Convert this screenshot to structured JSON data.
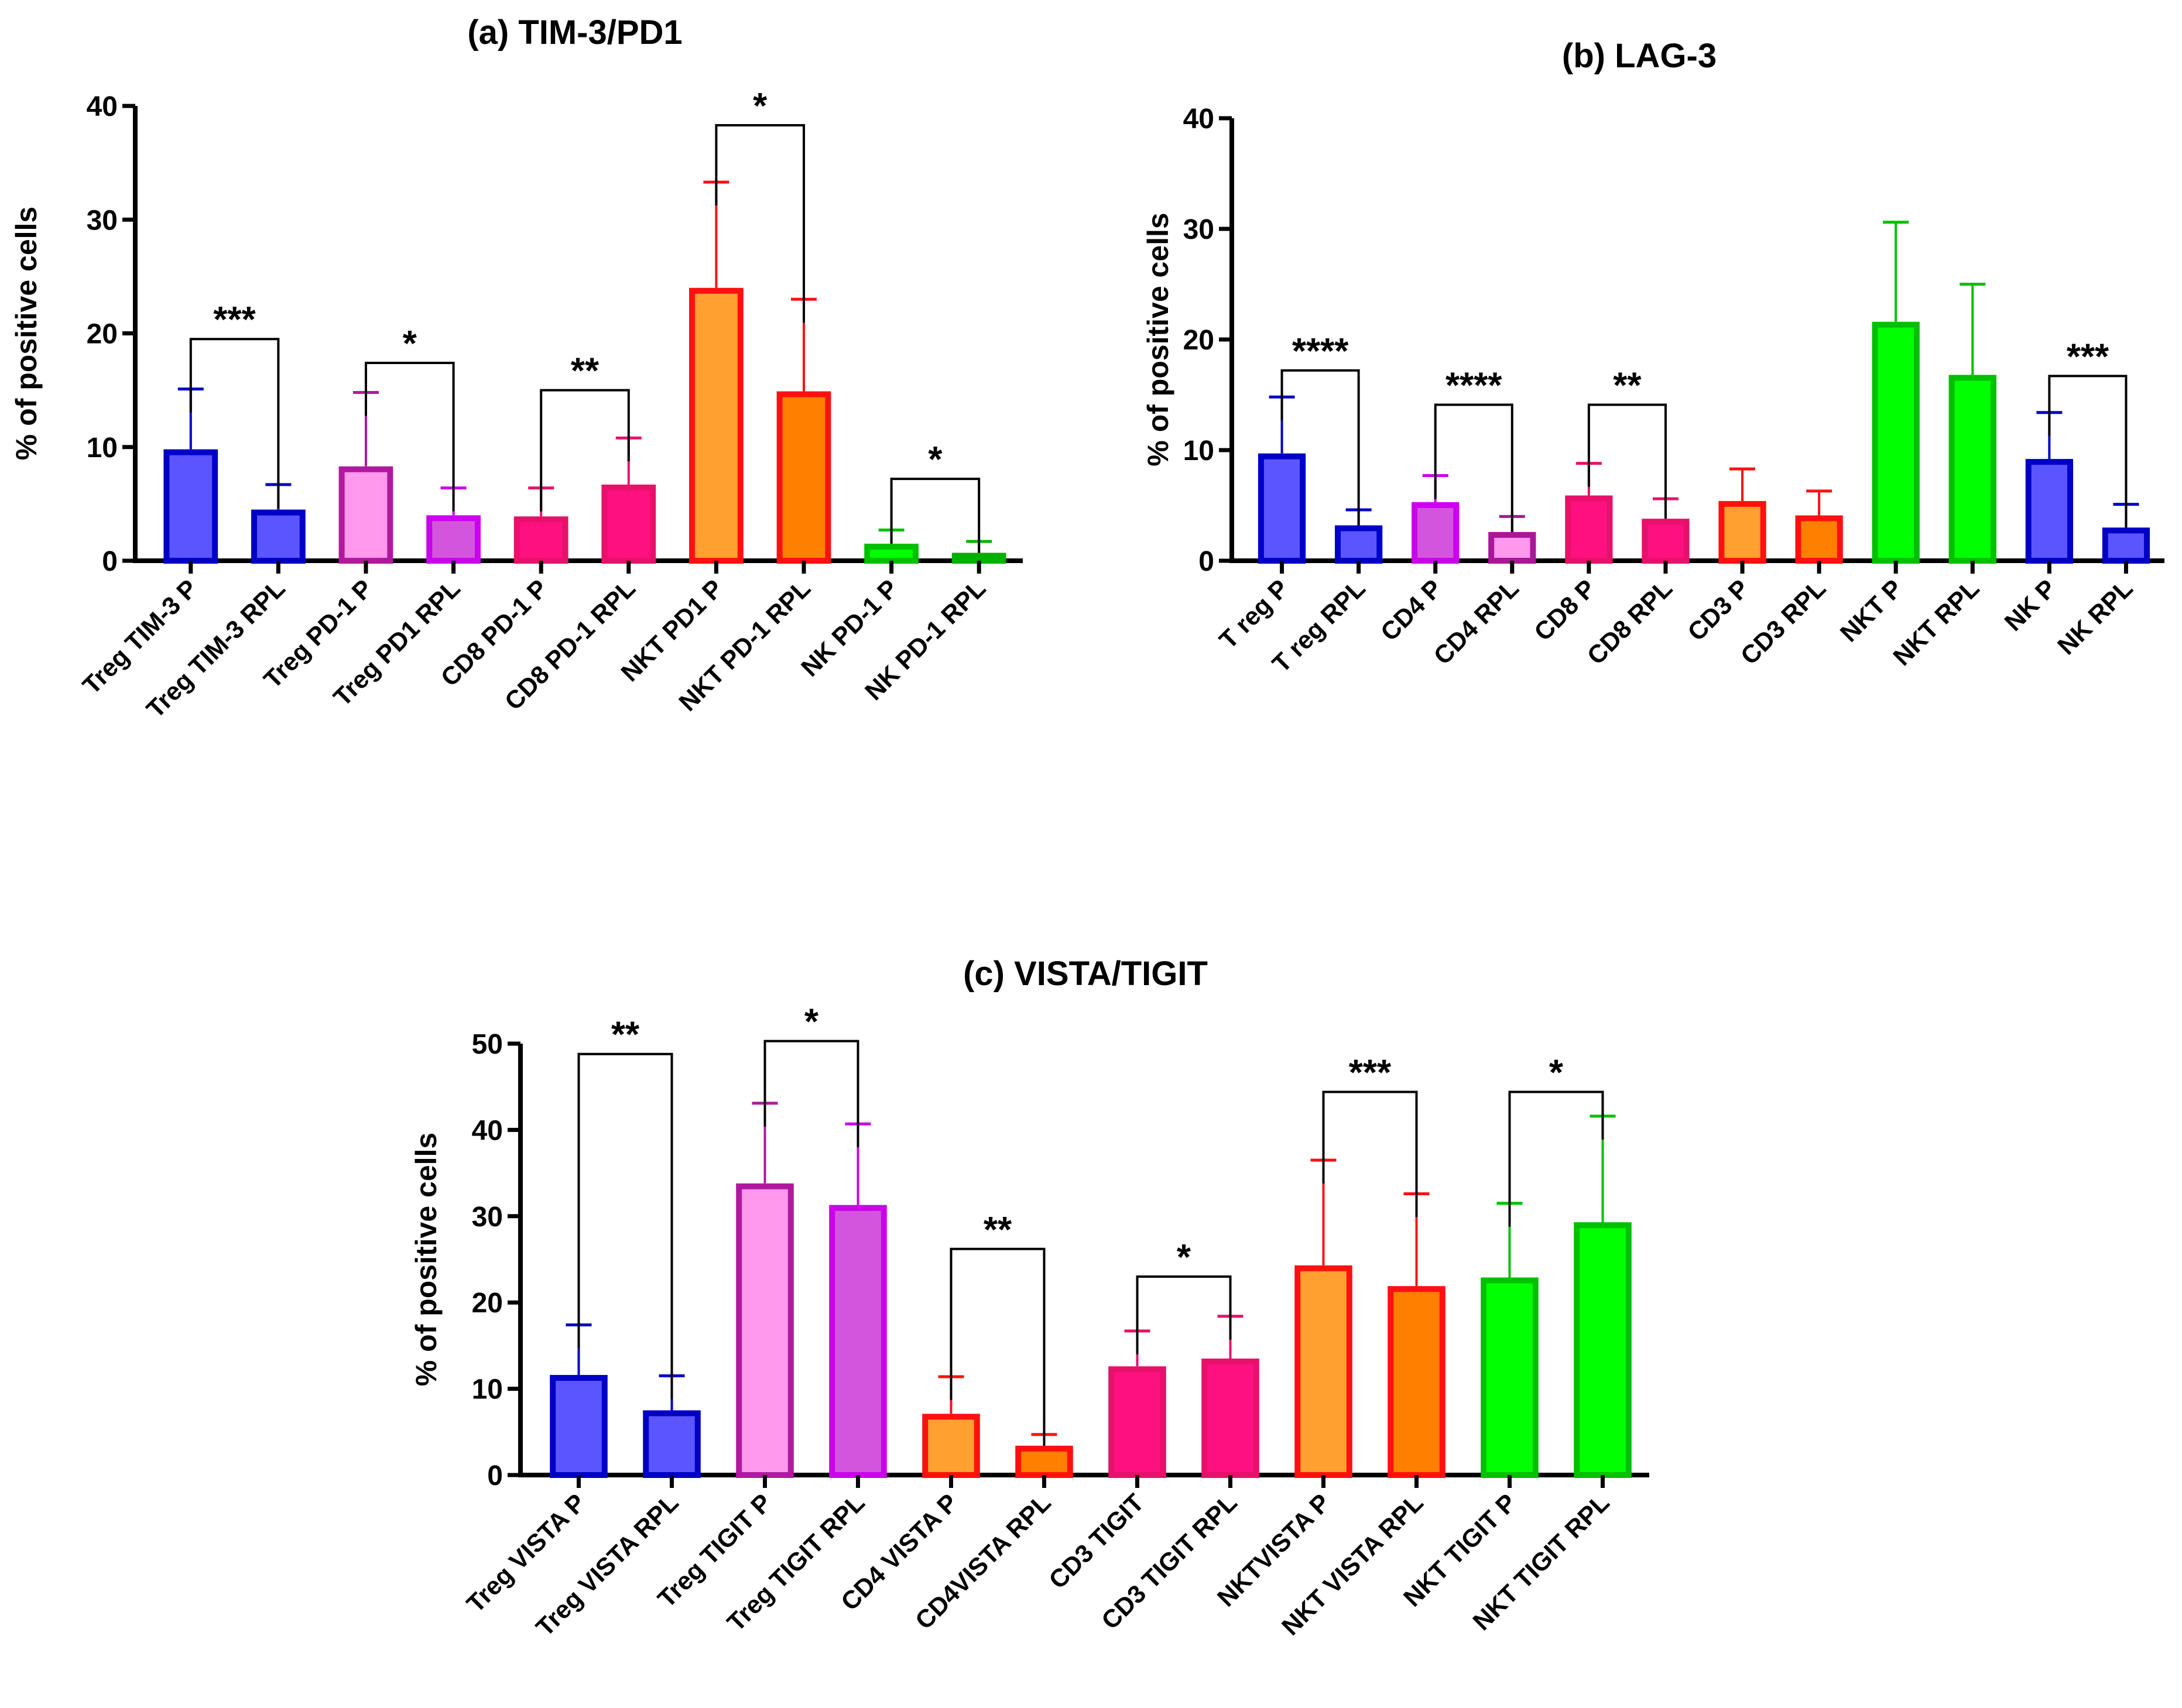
{
  "colors": {
    "blue": {
      "fill": "#5a55ff",
      "stroke": "#0000c8"
    },
    "pink": {
      "fill": "#ff99ee",
      "stroke": "#b0199e"
    },
    "violet": {
      "fill": "#d455dd",
      "stroke": "#cc00ee"
    },
    "pink_purple": {
      "fill": "#ff99ee",
      "stroke": "#a8179a"
    },
    "hotpink": {
      "fill": "#ff1080",
      "stroke": "#e8106a"
    },
    "orange": {
      "fill": "#ffa030",
      "stroke": "#ff1010"
    },
    "darkorange": {
      "fill": "#ff8000",
      "stroke": "#ff1010"
    },
    "green": {
      "fill": "#00ff00",
      "stroke": "#00c000"
    },
    "green2": {
      "fill": "#00cc00",
      "stroke": "#00b000"
    }
  },
  "chart_data": [
    {
      "type": "bar",
      "title": "(a) TIM-3/PD1",
      "xlabel": "",
      "ylabel": "% of positive cells",
      "ylim": [
        0,
        40
      ],
      "yticks": [
        0,
        10,
        20,
        30,
        40
      ],
      "categories": [
        "Treg TIM-3 P",
        "Treg TIM-3 RPL",
        "Treg PD-1 P",
        "Treg PD1 RPL",
        "CD8 PD-1 P",
        "CD8 PD-1 RPL",
        "NKT PD1 P",
        "NKT PD-1 RPL",
        "NK PD-1 P",
        "NK PD-1 RPL"
      ],
      "values": [
        9.8,
        4.5,
        8.3,
        4.0,
        3.9,
        6.7,
        24.0,
        14.9,
        1.5,
        0.7
      ],
      "error_upper": [
        15.1,
        6.7,
        14.8,
        6.4,
        6.4,
        10.8,
        33.3,
        23.0,
        2.7,
        1.7
      ],
      "color_keys": [
        "blue",
        "blue",
        "pink",
        "violet",
        "hotpink",
        "hotpink",
        "orange",
        "darkorange",
        "green",
        "green2"
      ],
      "significance": [
        {
          "pair": [
            0,
            1
          ],
          "y": 19.5,
          "label": "***"
        },
        {
          "pair": [
            2,
            3
          ],
          "y": 17.4,
          "label": "*"
        },
        {
          "pair": [
            4,
            5
          ],
          "y": 15.0,
          "label": "**"
        },
        {
          "pair": [
            6,
            7
          ],
          "y": 38.3,
          "label": "*"
        },
        {
          "pair": [
            8,
            9
          ],
          "y": 7.2,
          "label": "*"
        }
      ]
    },
    {
      "type": "bar",
      "title": "(b) LAG-3",
      "xlabel": "",
      "ylabel": "% of positive cells",
      "ylim": [
        0,
        40
      ],
      "yticks": [
        0,
        10,
        20,
        30,
        40
      ],
      "categories": [
        "T reg P",
        "T reg RPL",
        "CD4 P",
        "CD4 RPL",
        "CD8 P",
        "CD8 RPL",
        "CD3 P",
        "CD3 RPL",
        "NKT P",
        "NKT RPL",
        "NK P",
        "NK RPL"
      ],
      "values": [
        9.7,
        3.2,
        5.3,
        2.6,
        5.9,
        3.8,
        5.4,
        4.1,
        21.6,
        16.8,
        9.2,
        3.0
      ],
      "error_upper": [
        14.8,
        4.6,
        7.7,
        4.0,
        8.8,
        5.6,
        8.3,
        6.3,
        30.6,
        25.0,
        13.4,
        5.1
      ],
      "color_keys": [
        "blue",
        "blue",
        "violet",
        "pink_purple",
        "hotpink",
        "hotpink",
        "orange",
        "darkorange",
        "green",
        "green",
        "blue",
        "blue"
      ],
      "significance": [
        {
          "pair": [
            0,
            1
          ],
          "y": 17.2,
          "label": "****"
        },
        {
          "pair": [
            2,
            3
          ],
          "y": 14.1,
          "label": "****"
        },
        {
          "pair": [
            4,
            5
          ],
          "y": 14.1,
          "label": "**"
        },
        {
          "pair": [
            10,
            11
          ],
          "y": 16.7,
          "label": "***"
        }
      ]
    },
    {
      "type": "bar",
      "title": "(c) VISTA/TIGIT",
      "xlabel": "",
      "ylabel": "% of positive cells",
      "ylim": [
        0,
        50
      ],
      "yticks": [
        0,
        10,
        20,
        30,
        40,
        50
      ],
      "categories": [
        "Treg VISTA P",
        "Treg VISTA RPL",
        "Treg TIGIT P",
        "Treg TIGIT RPL",
        "CD4 VISTA P",
        "CD4VISTA RPL",
        "CD3 TIGIT",
        "CD3 TIGIT RPL",
        "NKTVISTA P",
        "NKT VISTA RPL",
        "NKT TIGIT P",
        "NKT TIGIT RPL"
      ],
      "values": [
        11.6,
        7.5,
        33.8,
        31.3,
        7.1,
        3.4,
        12.6,
        13.5,
        24.3,
        21.9,
        22.9,
        29.3
      ],
      "error_upper": [
        17.4,
        11.5,
        43.1,
        40.7,
        11.4,
        4.7,
        16.7,
        18.4,
        36.5,
        32.6,
        31.5,
        41.6
      ],
      "color_keys": [
        "blue",
        "blue",
        "pink",
        "violet",
        "orange",
        "darkorange",
        "hotpink",
        "hotpink",
        "orange",
        "darkorange",
        "green",
        "green"
      ],
      "significance": [
        {
          "pair": [
            0,
            1
          ],
          "y": 48.8,
          "label": "**"
        },
        {
          "pair": [
            2,
            3
          ],
          "y": 50.3,
          "label": "*"
        },
        {
          "pair": [
            4,
            5
          ],
          "y": 26.2,
          "label": "**"
        },
        {
          "pair": [
            6,
            7
          ],
          "y": 23.0,
          "label": "*"
        },
        {
          "pair": [
            8,
            9
          ],
          "y": 44.4,
          "label": "***"
        },
        {
          "pair": [
            10,
            11
          ],
          "y": 44.4,
          "label": "*"
        }
      ]
    }
  ]
}
